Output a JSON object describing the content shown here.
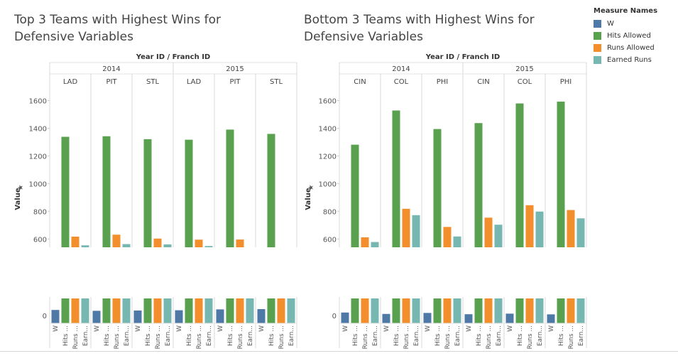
{
  "colors": {
    "W": "#4e79a7",
    "Hits Allowed": "#59a14f",
    "Runs Allowed": "#f28e2b",
    "Earned Runs": "#76b7b2"
  },
  "legend": {
    "title": "Measure Names",
    "items": [
      "W",
      "Hits Allowed",
      "Runs Allowed",
      "Earned Runs"
    ]
  },
  "chart_data": [
    {
      "type": "bar",
      "title": "Top 3 Teams with Highest Wins for Defensive Variables",
      "header_label": "Year ID / Franch ID",
      "ylabel": "Value",
      "ylim": [
        540,
        1700
      ],
      "yticks": [
        600,
        800,
        1000,
        1200,
        1400,
        1600
      ],
      "lower_tick": "0",
      "measures": [
        "W",
        "Hits Allowed",
        "Runs Allowed",
        "Earned Runs"
      ],
      "x_labels": [
        "W",
        "Hits ...",
        "Runs ...",
        "Earn..."
      ],
      "years": [
        {
          "year": "2014",
          "teams": [
            {
              "team": "LAD",
              "values": [
                94,
                1338,
                617,
                554
              ]
            },
            {
              "team": "PIT",
              "values": [
                88,
                1342,
                631,
                563
              ]
            },
            {
              "team": "STL",
              "values": [
                90,
                1321,
                603,
                561
              ]
            }
          ]
        },
        {
          "year": "2015",
          "teams": [
            {
              "team": "LAD",
              "values": [
                92,
                1317,
                595,
                549
              ]
            },
            {
              "team": "PIT",
              "values": [
                98,
                1390,
                596,
                532
              ]
            },
            {
              "team": "STL",
              "values": [
                100,
                1359,
                525,
                460
              ]
            }
          ]
        }
      ]
    },
    {
      "type": "bar",
      "title": "Bottom 3 Teams with Highest Wins for Defensive Variables",
      "header_label": "Year ID / Franch ID",
      "ylabel": "Value",
      "ylim": [
        540,
        1700
      ],
      "yticks": [
        600,
        800,
        1000,
        1200,
        1400,
        1600
      ],
      "lower_tick": "0",
      "measures": [
        "W",
        "Hits Allowed",
        "Runs Allowed",
        "Earned Runs"
      ],
      "x_labels": [
        "W",
        "Hits ...",
        "Runs ...",
        "Earn..."
      ],
      "years": [
        {
          "year": "2014",
          "teams": [
            {
              "team": "CIN",
              "values": [
                76,
                1281,
                612,
                578
              ]
            },
            {
              "team": "COL",
              "values": [
                66,
                1528,
                818,
                772
              ]
            },
            {
              "team": "PHI",
              "values": [
                73,
                1394,
                687,
                618
              ]
            }
          ]
        },
        {
          "year": "2015",
          "teams": [
            {
              "team": "CIN",
              "values": [
                64,
                1437,
                754,
                703
              ]
            },
            {
              "team": "COL",
              "values": [
                68,
                1579,
                844,
                798
              ]
            },
            {
              "team": "PHI",
              "values": [
                63,
                1592,
                809,
                749
              ]
            }
          ]
        }
      ]
    }
  ]
}
